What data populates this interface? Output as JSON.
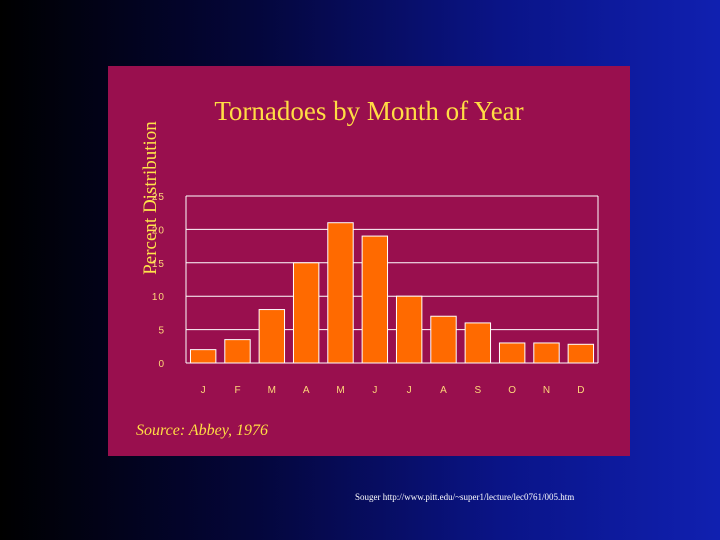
{
  "chart_data": {
    "type": "bar",
    "title": "Tornadoes by Month of Year",
    "xlabel": "",
    "ylabel": "Percent Distribution",
    "categories": [
      "J",
      "F",
      "M",
      "A",
      "M",
      "J",
      "J",
      "A",
      "S",
      "O",
      "N",
      "D"
    ],
    "values": [
      2,
      3.5,
      8,
      15,
      21,
      19,
      10,
      7,
      6,
      3,
      3,
      2.8
    ],
    "yticks": [
      "0",
      "5",
      "10",
      "15",
      "20",
      "25"
    ],
    "ylim": [
      0,
      25
    ],
    "grid": true,
    "source": "Source: Abbey, 1976"
  },
  "colors": {
    "bar": "#ff6a00",
    "bar_outline": "#ffffff",
    "tick_text": "#ffd87a",
    "grid": "#ffffff"
  },
  "caption": "Souger http://www.pitt.edu/~super1/lecture/lec0761/005.htm"
}
